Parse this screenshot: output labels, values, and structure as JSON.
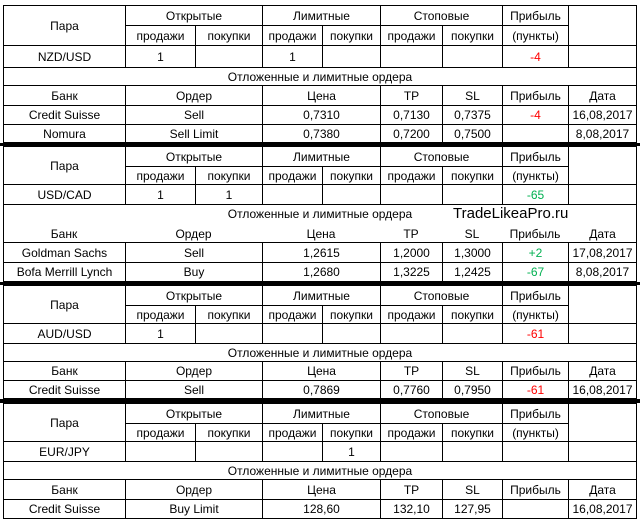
{
  "headers": {
    "pair": "Пара",
    "open": "Открытые",
    "limit": "Лимитные",
    "stop": "Стоповые",
    "profit": "Прибыль",
    "points": "(пункты)",
    "sell": "продажи",
    "buy": "покупки",
    "orders_title": "Отложенные и лимитные ордера",
    "bank": "Банк",
    "order": "Ордер",
    "price": "Цена",
    "tp": "TP",
    "sl": "SL",
    "date": "Дата"
  },
  "watermark": "TradeLikeaPro.ru",
  "blocks": [
    {
      "pair": "NZD/USD",
      "open_sell": "1",
      "open_buy": "",
      "limit_sell": "1",
      "limit_buy": "",
      "stop_sell": "",
      "stop_buy": "",
      "profit": "-4",
      "orders": [
        {
          "bank": "Credit Suisse",
          "order": "Sell",
          "price": "0,7310",
          "tp": "0,7130",
          "sl": "0,7375",
          "profit": "-4",
          "date": "16,08,2017"
        },
        {
          "bank": "Nomura",
          "order": "Sell Limit",
          "price": "0,7380",
          "tp": "0,7200",
          "sl": "0,7500",
          "profit": "",
          "date": "8,08,2017"
        }
      ]
    },
    {
      "pair": "USD/CAD",
      "open_sell": "1",
      "open_buy": "1",
      "limit_sell": "",
      "limit_buy": "",
      "stop_sell": "",
      "stop_buy": "",
      "profit": "-65",
      "orders": [
        {
          "bank": "Goldman Sachs",
          "order": "Sell",
          "price": "1,2615",
          "tp": "1,2000",
          "sl": "1,3000",
          "profit": "+2",
          "date": "17,08,2017"
        },
        {
          "bank": "Bofa Merrill Lynch",
          "order": "Buy",
          "price": "1,2680",
          "tp": "1,3225",
          "sl": "1,2425",
          "profit": "-67",
          "date": "8,08,2017"
        }
      ]
    },
    {
      "pair": "AUD/USD",
      "open_sell": "1",
      "open_buy": "",
      "limit_sell": "",
      "limit_buy": "",
      "stop_sell": "",
      "stop_buy": "",
      "profit": "-61",
      "orders": [
        {
          "bank": "Credit Suisse",
          "order": "Sell",
          "price": "0,7869",
          "tp": "0,7760",
          "sl": "0,7950",
          "profit": "-61",
          "date": "16,08,2017"
        }
      ]
    },
    {
      "pair": "EUR/JPY",
      "open_sell": "",
      "open_buy": "",
      "limit_sell": "",
      "limit_buy": "1",
      "stop_sell": "",
      "stop_buy": "",
      "profit": "",
      "orders": [
        {
          "bank": "Credit Suisse",
          "order": "Buy Limit",
          "price": "128,60",
          "tp": "132,10",
          "sl": "127,95",
          "profit": "",
          "date": "16,08,2017"
        }
      ]
    }
  ]
}
